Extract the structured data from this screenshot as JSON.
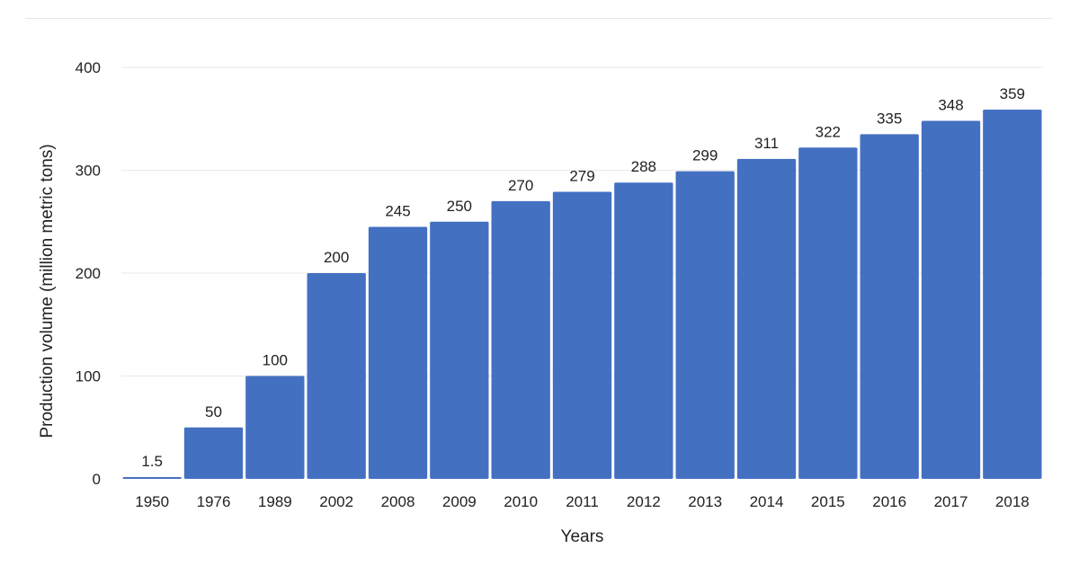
{
  "chart_data": {
    "type": "bar",
    "categories": [
      "1950",
      "1976",
      "1989",
      "2002",
      "2008",
      "2009",
      "2010",
      "2011",
      "2012",
      "2013",
      "2014",
      "2015",
      "2016",
      "2017",
      "2018"
    ],
    "values": [
      1.5,
      50,
      100,
      200,
      245,
      250,
      270,
      279,
      288,
      299,
      311,
      322,
      335,
      348,
      359
    ],
    "value_labels": [
      "1.5",
      "50",
      "100",
      "200",
      "245",
      "250",
      "270",
      "279",
      "288",
      "299",
      "311",
      "322",
      "335",
      "348",
      "359"
    ],
    "y_ticks": [
      0,
      100,
      200,
      300,
      400
    ],
    "y_tick_labels": [
      "0",
      "100",
      "200",
      "300",
      "400"
    ],
    "ylim": [
      0,
      400
    ],
    "xlabel": "Years",
    "ylabel": "Production volume (million metric tons)",
    "bar_color": "#4470c1",
    "grid": true,
    "legend": "none"
  }
}
